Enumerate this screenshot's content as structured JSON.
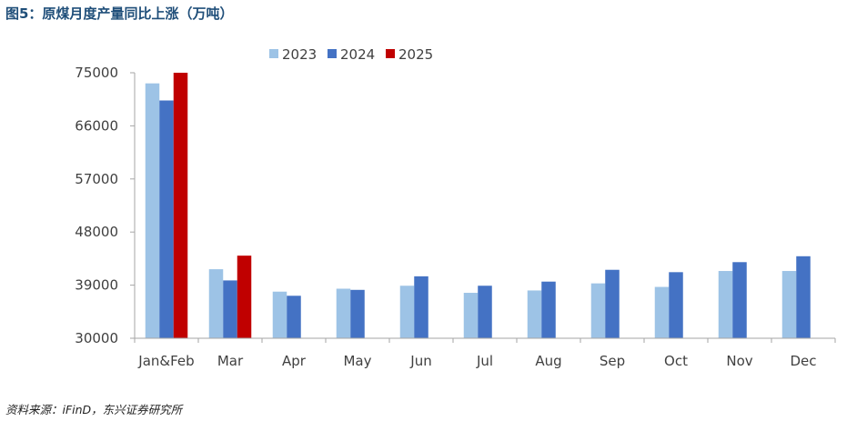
{
  "header": {
    "title": "图5：原煤月度产量同比上涨（万吨）"
  },
  "footer": {
    "source": "资料来源：iFinD，东兴证券研究所"
  },
  "colors": {
    "2023": "#9dc3e6",
    "2024": "#4472c4",
    "2025": "#c00000",
    "title": "#1f4e79"
  },
  "chart_data": {
    "type": "bar",
    "title": "",
    "xlabel": "",
    "ylabel": "",
    "ylim": [
      30000,
      75000
    ],
    "yticks": [
      "75000",
      "66000",
      "57000",
      "48000",
      "39000",
      "30000"
    ],
    "ytick_values": [
      75000,
      66000,
      57000,
      48000,
      39000,
      30000
    ],
    "categories": [
      "Jan&Feb",
      "Mar",
      "Apr",
      "May",
      "Jun",
      "Jul",
      "Aug",
      "Sep",
      "Oct",
      "Nov",
      "Dec"
    ],
    "legend_position": "top-center",
    "grid": false,
    "series": [
      {
        "name": "2023",
        "values": [
          73200,
          41700,
          37900,
          38400,
          38900,
          37700,
          38100,
          39300,
          38700,
          41400,
          41400
        ]
      },
      {
        "name": "2024",
        "values": [
          70300,
          39800,
          37200,
          38200,
          40500,
          38900,
          39600,
          41600,
          41200,
          42900,
          43900
        ]
      },
      {
        "name": "2025",
        "values": [
          75000,
          44000,
          null,
          null,
          null,
          null,
          null,
          null,
          null,
          null,
          null
        ]
      }
    ]
  }
}
